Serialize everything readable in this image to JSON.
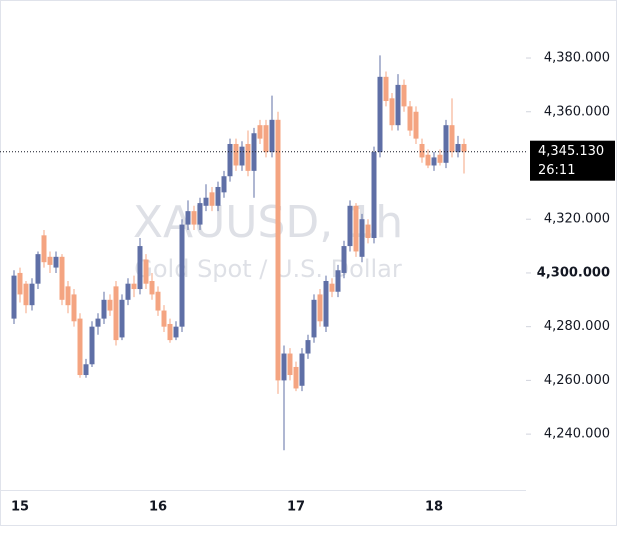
{
  "chart_data": {
    "type": "candlestick",
    "title": "XAUUSD, 1h",
    "subtitle": "Gold Spot / U.S. Dollar",
    "categories": [
      null,
      "15",
      null,
      null,
      null,
      null,
      null,
      null,
      null,
      null,
      null,
      null,
      null,
      null,
      null,
      null,
      null,
      null,
      null,
      null,
      null,
      null,
      null,
      null,
      "16",
      null,
      null,
      null,
      null,
      null,
      null,
      null,
      null,
      null,
      null,
      null,
      null,
      null,
      null,
      null,
      null,
      null,
      null,
      null,
      null,
      null,
      null,
      "17",
      null,
      null,
      null,
      null,
      null,
      null,
      null,
      null,
      null,
      null,
      null,
      null,
      null,
      null,
      null,
      null,
      null,
      null,
      null,
      null,
      null,
      null,
      "18",
      null,
      null,
      null,
      null,
      null
    ],
    "open": [
      4283,
      4300,
      4296,
      4288,
      4296,
      4314,
      4306,
      4302,
      4306,
      4295,
      4292,
      4283,
      4262,
      4266,
      4280,
      4283,
      4290,
      4295,
      4276,
      4290,
      4296,
      4294,
      4305,
      4297,
      4293,
      4286,
      4281,
      4276,
      4280,
      4318,
      4323,
      4318,
      4325,
      4330,
      4325,
      4330,
      4336,
      4348,
      4340,
      4348,
      4338,
      4355,
      4355,
      4345,
      4357,
      4260,
      4270,
      4265,
      4258,
      4270,
      4276,
      4292,
      4280,
      4296,
      4293,
      4300,
      4310,
      4325,
      4306,
      4318,
      4313,
      4345,
      4373,
      4365,
      4355,
      4370,
      4362,
      4360,
      4348,
      4344,
      4340,
      4344,
      4341,
      4355,
      4345,
      4348
    ],
    "high": [
      4301,
      4302,
      4297,
      4298,
      4308,
      4316,
      4308,
      4308,
      4307,
      4297,
      4294,
      4285,
      4268,
      4282,
      4285,
      4293,
      4292,
      4297,
      4292,
      4298,
      4299,
      4313,
      4307,
      4300,
      4295,
      4288,
      4283,
      4282,
      4320,
      4327,
      4325,
      4328,
      4333,
      4332,
      4334,
      4338,
      4350,
      4350,
      4349,
      4353,
      4354,
      4357,
      4357,
      4366,
      4360,
      4273,
      4272,
      4267,
      4272,
      4277,
      4292,
      4294,
      4299,
      4298,
      4303,
      4312,
      4327,
      4326,
      4322,
      4320,
      4347,
      4381,
      4375,
      4367,
      4374,
      4372,
      4364,
      4362,
      4350,
      4346,
      4345,
      4346,
      4357,
      4365,
      4351,
      4350
    ],
    "low": [
      4281,
      4289,
      4285,
      4286,
      4294,
      4302,
      4300,
      4300,
      4288,
      4285,
      4280,
      4261,
      4261,
      4265,
      4277,
      4281,
      4284,
      4273,
      4275,
      4288,
      4291,
      4292,
      4294,
      4290,
      4284,
      4278,
      4274,
      4275,
      4278,
      4316,
      4316,
      4316,
      4323,
      4323,
      4323,
      4328,
      4334,
      4338,
      4338,
      4336,
      4328,
      4348,
      4343,
      4343,
      4255,
      4234,
      4260,
      4256,
      4256,
      4268,
      4274,
      4280,
      4278,
      4291,
      4291,
      4298,
      4308,
      4306,
      4304,
      4311,
      4311,
      4343,
      4362,
      4353,
      4353,
      4360,
      4351,
      4348,
      4341,
      4339,
      4338,
      4340,
      4339,
      4343,
      4343,
      4337
    ],
    "close": [
      4299,
      4292,
      4288,
      4296,
      4307,
      4304,
      4303,
      4306,
      4290,
      4288,
      4282,
      4262,
      4266,
      4280,
      4283,
      4290,
      4286,
      4275,
      4290,
      4296,
      4294,
      4310,
      4296,
      4292,
      4286,
      4280,
      4275,
      4280,
      4318,
      4323,
      4318,
      4326,
      4328,
      4325,
      4332,
      4336,
      4348,
      4340,
      4347,
      4338,
      4352,
      4350,
      4345,
      4357,
      4260,
      4270,
      4262,
      4257,
      4270,
      4275,
      4290,
      4282,
      4297,
      4293,
      4301,
      4310,
      4325,
      4308,
      4320,
      4313,
      4345,
      4373,
      4364,
      4355,
      4370,
      4362,
      4353,
      4350,
      4343,
      4340,
      4343,
      4341,
      4355,
      4345,
      4348,
      4345.13
    ],
    "up_color": "#5f6fa6",
    "down_color": "#f4a481",
    "ylim": [
      4219.2,
      4401.6
    ],
    "yticks": [
      {
        "value": 4240,
        "label": "4,240.000"
      },
      {
        "value": 4260,
        "label": "4,260.000"
      },
      {
        "value": 4280,
        "label": "4,280.000"
      },
      {
        "value": 4300,
        "label": "4,300.000"
      },
      {
        "value": 4320,
        "label": "4,320.000"
      },
      {
        "value": 4360,
        "label": "4,360.000"
      },
      {
        "value": 4380,
        "label": "4,380.000"
      }
    ],
    "last_price": {
      "value": 4345.13,
      "label": "4,345.130"
    },
    "countdown": "26:11",
    "grid": false
  }
}
